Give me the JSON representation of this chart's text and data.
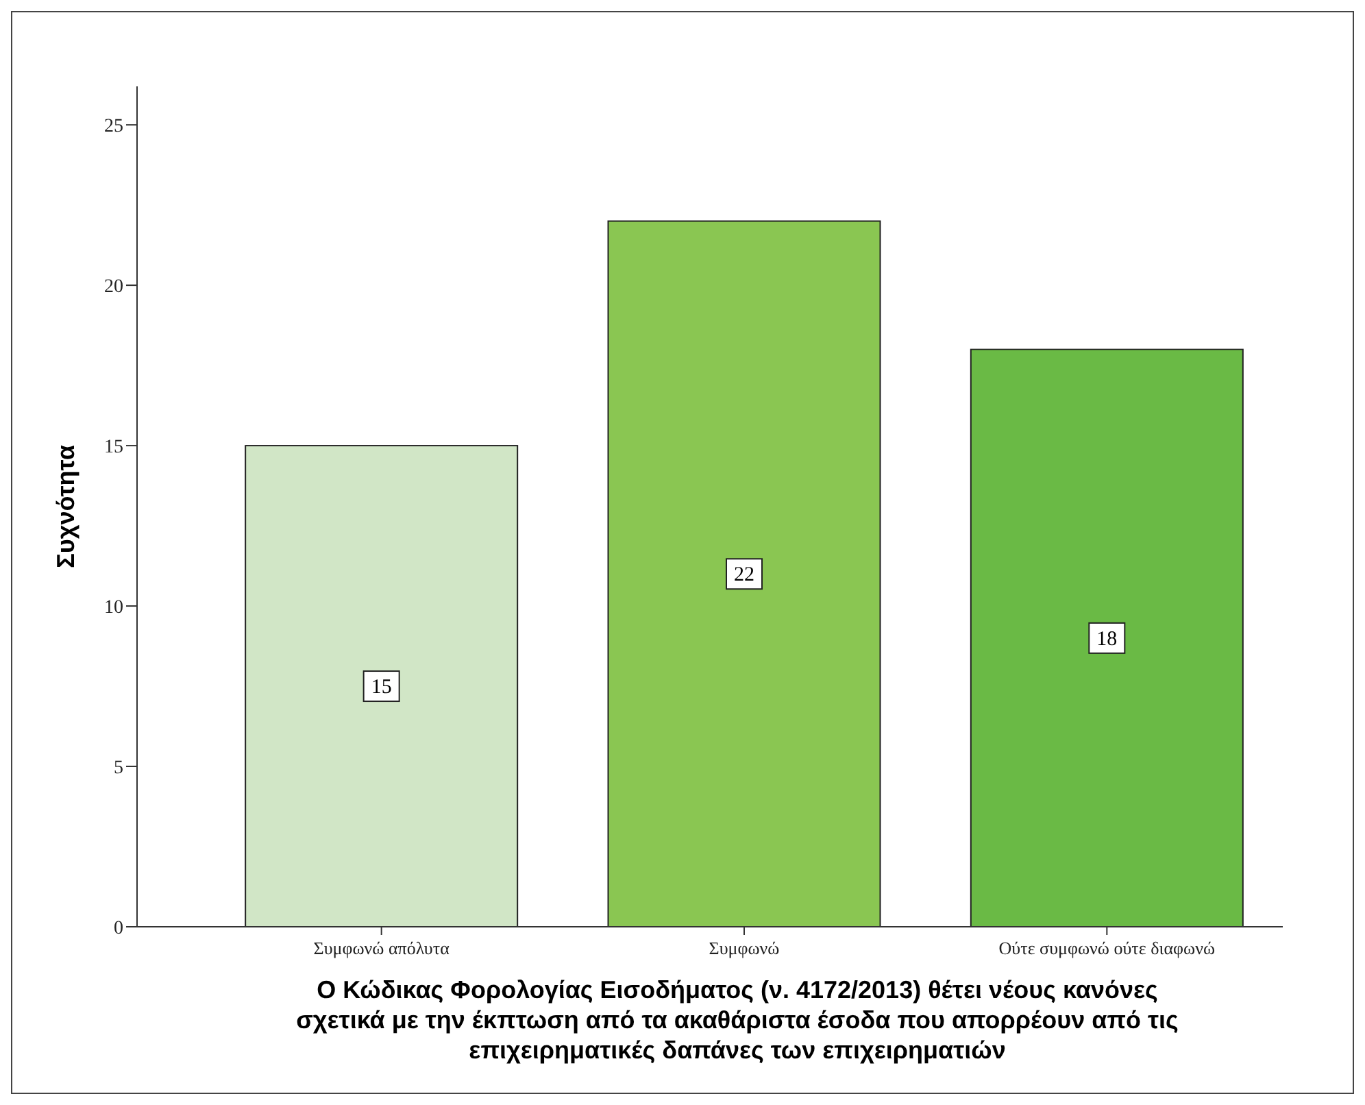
{
  "chart_data": {
    "type": "bar",
    "categories": [
      "Συμφωνώ απόλυτα",
      "Συμφωνώ",
      "Ούτε συμφωνώ ούτε διαφωνώ"
    ],
    "values": [
      15,
      22,
      18
    ],
    "colors": [
      "#d1e6c6",
      "#8ac652",
      "#6aba45"
    ],
    "xlabel": "Ο Κώδικας Φορολογίας Εισοδήματος (ν. 4172/2013) θέτει νέους κανόνες\nσχετικά με την έκπτωση από τα ακαθάριστα έσοδα που απορρέουν από τις\nεπιχειρηματικές δαπάνες των επιχειρηματιών",
    "ylabel": "Συχνότητα",
    "ylim": [
      0,
      26.2
    ],
    "yticks": [
      0,
      5,
      10,
      15,
      20,
      25
    ],
    "data_labels": true,
    "grid": false
  }
}
